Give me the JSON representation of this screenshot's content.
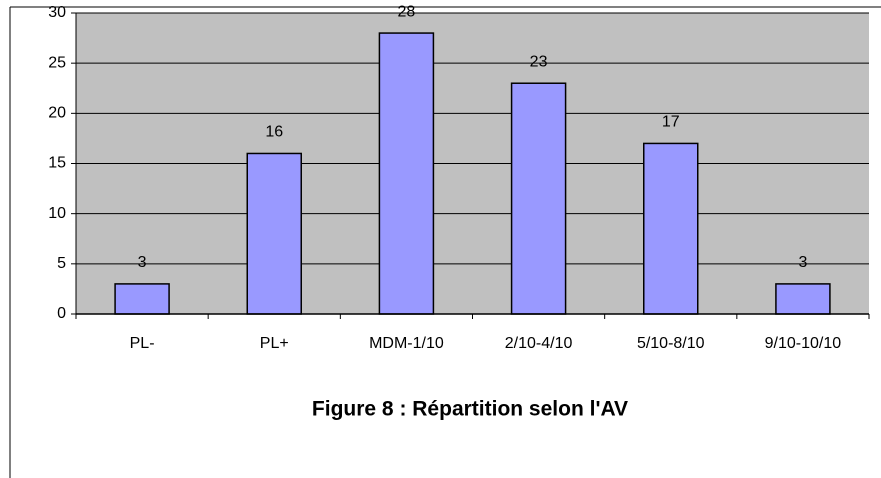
{
  "chart_data": {
    "type": "bar",
    "title": "Figure 8 : Répartition selon l'AV",
    "categories": [
      "PL-",
      "PL+",
      "MDM-1/10",
      "2/10-4/10",
      "5/10-8/10",
      "9/10-10/10"
    ],
    "values": [
      3,
      16,
      28,
      23,
      17,
      3
    ],
    "color": "#9999ff",
    "plot_background": "#c0c0c0",
    "ylim": [
      0,
      30
    ],
    "yticks": [
      0,
      5,
      10,
      15,
      20,
      25,
      30
    ],
    "grid": true
  }
}
